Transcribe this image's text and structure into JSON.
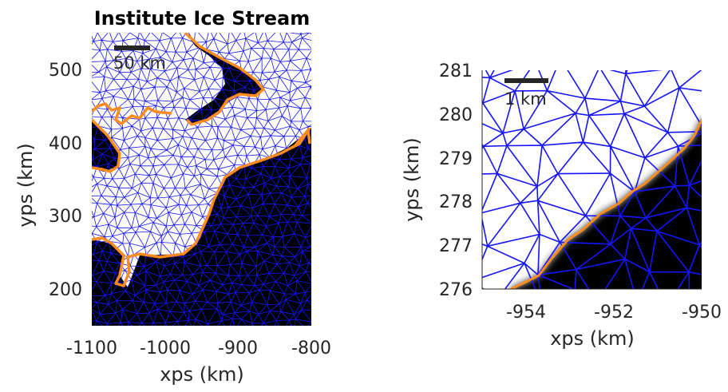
{
  "chart_data": [
    {
      "type": "map",
      "title": "Institute Ice Stream",
      "xlabel": "xps (km)",
      "ylabel": "yps (km)",
      "xlim": [
        -1100,
        -800
      ],
      "ylim": [
        150,
        550
      ],
      "xticks": [
        -1100,
        -1000,
        -900,
        -800
      ],
      "xtick_labels": [
        "-1100",
        "-1000",
        "-900",
        "-800"
      ],
      "yticks": [
        200,
        300,
        400,
        500
      ],
      "ytick_labels": [
        "200",
        "300",
        "400",
        "500"
      ],
      "scalebar": {
        "label": "50 km",
        "length_km": 50,
        "position": "top-left"
      },
      "layers": [
        "ice thickness shading (black = grounded)",
        "finite-element mesh (blue)",
        "grounding line (orange)"
      ],
      "grid": false
    },
    {
      "type": "map",
      "title": "",
      "xlabel": "xps (km)",
      "ylabel": "yps (km)",
      "xlim": [
        -955,
        -950
      ],
      "ylim": [
        276,
        281
      ],
      "xticks": [
        -954,
        -952,
        -950
      ],
      "xtick_labels": [
        "-954",
        "-952",
        "-950"
      ],
      "yticks": [
        276,
        277,
        278,
        279,
        280,
        281
      ],
      "ytick_labels": [
        "276",
        "277",
        "278",
        "279",
        "280",
        "281"
      ],
      "scalebar": {
        "label": "1 km",
        "length_km": 1,
        "position": "top-left"
      },
      "layers": [
        "ice thickness shading (black = grounded)",
        "finite-element mesh (blue)",
        "grounding line (orange)"
      ],
      "grid": false
    }
  ],
  "colors": {
    "mesh": "#1414ff",
    "grounding_line": "#ff8c1a",
    "grounded": "#000000",
    "floating": "#ffffff",
    "scalebar": "#262626"
  }
}
